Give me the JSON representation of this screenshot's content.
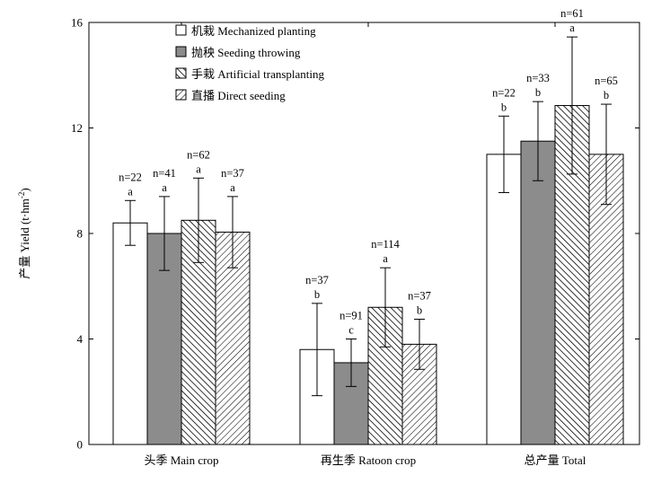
{
  "chart_data": {
    "type": "bar",
    "ylabel_main": "产量 Yield (t·hm",
    "ylabel_sup": "-2",
    "ylabel_tail": ")",
    "ylim": [
      0,
      16
    ],
    "yticks": [
      "0",
      "4",
      "8",
      "12",
      "16"
    ],
    "categories": [
      "头季 Main crop",
      "再生季 Ratoon crop",
      "总产量 Total"
    ],
    "legend_position": "top-left",
    "series": [
      {
        "name": "机栽 Mechanized planting",
        "fill": "white",
        "values": [
          8.4,
          3.6,
          11.0
        ],
        "errors": [
          0.85,
          1.75,
          1.45
        ],
        "letters": [
          "a",
          "b",
          "b"
        ],
        "n": [
          "n=22",
          "n=37",
          "n=22"
        ]
      },
      {
        "name": "抛秧 Seeding throwing",
        "fill": "gray",
        "values": [
          8.0,
          3.1,
          11.5
        ],
        "errors": [
          1.4,
          0.9,
          1.5
        ],
        "letters": [
          "a",
          "c",
          "b"
        ],
        "n": [
          "n=41",
          "n=91",
          "n=33"
        ]
      },
      {
        "name": "手栽 Artificial transplanting",
        "fill": "hatch-dense",
        "values": [
          8.5,
          5.2,
          12.85
        ],
        "errors": [
          1.6,
          1.5,
          2.6
        ],
        "letters": [
          "a",
          "a",
          "a"
        ],
        "n": [
          "n=62",
          "n=114",
          "n=61"
        ]
      },
      {
        "name": "直播 Direct seeding",
        "fill": "hatch-light",
        "values": [
          8.05,
          3.8,
          11.0
        ],
        "errors": [
          1.35,
          0.95,
          1.9
        ],
        "letters": [
          "a",
          "b",
          "b"
        ],
        "n": [
          "n=37",
          "n=37",
          "n=65"
        ]
      }
    ]
  },
  "colors": {
    "axis": "#000000",
    "gray_fill": "#8c8c8c",
    "white_fill": "#ffffff",
    "hatch": "#000000"
  }
}
